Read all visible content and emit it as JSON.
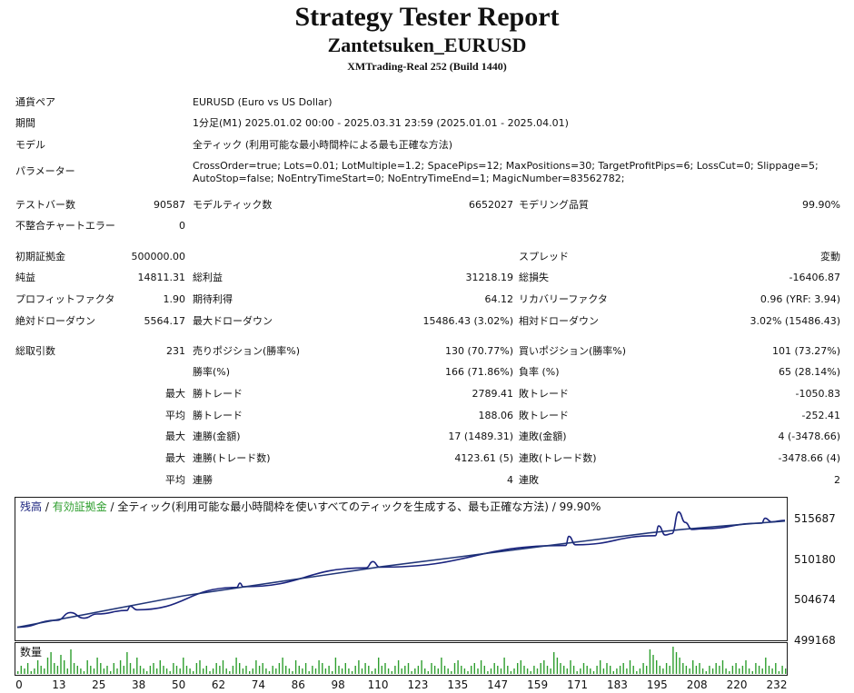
{
  "header": {
    "title": "Strategy Tester Report",
    "subtitle": "Zantetsuken_EURUSD",
    "build": "XMTrading-Real 252 (Build 1440)"
  },
  "info": {
    "symbol_label": "通貨ペア",
    "symbol_value": "EURUSD (Euro vs US Dollar)",
    "period_label": "期間",
    "period_value": "1分足(M1) 2025.01.02 00:00 - 2025.03.31 23:59 (2025.01.01 - 2025.04.01)",
    "model_label": "モデル",
    "model_value": "全ティック (利用可能な最小時間枠による最も正確な方法)",
    "params_label": "パラメーター",
    "params_line1": "CrossOrder=true; Lots=0.01; LotMultiple=1.2; SpacePips=12; MaxPositions=30; TargetProfitPips=6; LossCut=0; Slippage=5;",
    "params_line2": "AutoStop=false; NoEntryTimeStart=0; NoEntryTimeEnd=1; MagicNumber=83562782;"
  },
  "bars": {
    "bars_label": "テストバー数",
    "bars_value": "90587",
    "ticks_label": "モデルティック数",
    "ticks_value": "6652027",
    "quality_label": "モデリング品質",
    "quality_value": "99.90%",
    "errors_label": "不整合チャートエラー",
    "errors_value": "0"
  },
  "stats": {
    "deposit_label": "初期証拠金",
    "deposit_value": "500000.00",
    "spread_label": "スプレッド",
    "spread_value": "変動",
    "net_label": "純益",
    "net_value": "14811.31",
    "gross_profit_label": "総利益",
    "gross_profit_value": "31218.19",
    "gross_loss_label": "総損失",
    "gross_loss_value": "-16406.87",
    "pf_label": "プロフィットファクタ",
    "pf_value": "1.90",
    "payoff_label": "期待利得",
    "payoff_value": "64.12",
    "recovery_label": "リカバリーファクタ",
    "recovery_value": "0.96 (YRF: 3.94)",
    "abs_dd_label": "絶対ドローダウン",
    "abs_dd_value": "5564.17",
    "max_dd_label": "最大ドローダウン",
    "max_dd_value": "15486.43 (3.02%)",
    "rel_dd_label": "相対ドローダウン",
    "rel_dd_value": "3.02% (15486.43)"
  },
  "trades": {
    "total_label": "総取引数",
    "total_value": "231",
    "short_label": "売りポジション(勝率%)",
    "short_value": "130 (70.77%)",
    "long_label": "買いポジション(勝率%)",
    "long_value": "101 (73.27%)",
    "winrate_label": "勝率(%)",
    "winrate_value": "166 (71.86%)",
    "lossrate_label": "負率 (%)",
    "lossrate_value": "65 (28.14%)",
    "max_label": "最大",
    "avg_label": "平均",
    "largest_win_label": "勝トレード",
    "largest_win_value": "2789.41",
    "largest_loss_label": "敗トレード",
    "largest_loss_value": "-1050.83",
    "avg_win_label": "勝トレード",
    "avg_win_value": "188.06",
    "avg_loss_label": "敗トレード",
    "avg_loss_value": "-252.41",
    "consec_win_amt_label": "連勝(金額)",
    "consec_win_amt_value": "17 (1489.31)",
    "consec_loss_amt_label": "連敗(金額)",
    "consec_loss_amt_value": "4 (-3478.66)",
    "consec_win_cnt_label": "連勝(トレード数)",
    "consec_win_cnt_value": "4123.61 (5)",
    "consec_loss_cnt_label": "連敗(トレード数)",
    "consec_loss_cnt_value": "-3478.66 (4)",
    "avg_consec_win_label": "連勝",
    "avg_consec_win_value": "4",
    "avg_consec_loss_label": "連敗",
    "avg_consec_loss_value": "2"
  },
  "chart_data": {
    "type": "line",
    "legend_balance": "残高",
    "legend_sep1": " / ",
    "legend_equity": "有効証拠金",
    "legend_sep2": " / 全ティック(利用可能な最小時間枠を使いすべてのティックを生成する、最も正確な方法) / ",
    "legend_quality": "99.90%",
    "y_ticks": [
      "515687",
      "510180",
      "504674",
      "499168"
    ],
    "ylim": [
      499168,
      517500
    ],
    "x_ticks": [
      "0",
      "13",
      "25",
      "38",
      "50",
      "62",
      "74",
      "86",
      "98",
      "110",
      "123",
      "135",
      "147",
      "159",
      "171",
      "183",
      "195",
      "208",
      "220",
      "232"
    ],
    "volume_label": "数量",
    "colors": {
      "balance": "#1a237e",
      "equity": "#2e9e2e",
      "volume": "#2e9e2e",
      "legend_balance": "#1a237e",
      "legend_equity": "#2e9e2e"
    },
    "series": [
      {
        "name": "残高",
        "x": [
          0,
          10,
          20,
          30,
          40,
          50,
          60,
          70,
          80,
          90,
          100,
          110,
          120,
          130,
          140,
          150,
          160,
          170,
          180,
          190,
          200,
          210,
          220,
          231
        ],
        "values": [
          500000,
          500900,
          501800,
          502700,
          503600,
          504500,
          505200,
          505900,
          506600,
          507300,
          508000,
          508700,
          509300,
          509900,
          510500,
          511100,
          511700,
          512300,
          512900,
          513500,
          514000,
          514400,
          514800,
          515200
        ]
      },
      {
        "name": "有効証拠金",
        "x": [
          0,
          12,
          16,
          20,
          24,
          33,
          34,
          36,
          66,
          67,
          68,
          105,
          107,
          109,
          165,
          166,
          168,
          192,
          193,
          195,
          197,
          199,
          201,
          203,
          206,
          224,
          225,
          227,
          231
        ],
        "values": [
          500000,
          501000,
          502100,
          501300,
          501900,
          502400,
          503000,
          502500,
          505700,
          506300,
          505800,
          508500,
          509400,
          508600,
          511700,
          513000,
          511800,
          513100,
          514500,
          513200,
          513400,
          516500,
          515000,
          514000,
          514100,
          514900,
          515600,
          515100,
          515300
        ]
      }
    ],
    "volume": [
      1,
      3,
      2,
      4,
      1,
      2,
      5,
      3,
      2,
      6,
      8,
      4,
      3,
      7,
      5,
      2,
      9,
      4,
      3,
      2,
      1,
      5,
      3,
      2,
      6,
      4,
      2,
      3,
      1,
      4,
      2,
      5,
      3,
      8,
      4,
      2,
      6,
      3,
      2,
      1,
      3,
      4,
      2,
      5,
      3,
      2,
      1,
      4,
      3,
      2,
      6,
      3,
      2,
      1,
      4,
      5,
      2,
      3,
      1,
      2,
      4,
      3,
      5,
      2,
      1,
      3,
      6,
      4,
      2,
      3,
      1,
      2,
      5,
      3,
      4,
      2,
      1,
      3,
      2,
      4,
      6,
      3,
      2,
      1,
      5,
      3,
      2,
      4,
      1,
      3,
      2,
      5,
      4,
      2,
      3,
      1,
      6,
      3,
      2,
      4,
      2,
      1,
      3,
      5,
      2,
      4,
      3,
      1,
      2,
      6,
      3,
      4,
      2,
      1,
      3,
      5,
      2,
      3,
      4,
      1,
      2,
      3,
      5,
      2,
      1,
      4,
      3,
      2,
      6,
      3,
      2,
      1,
      4,
      5,
      3,
      2,
      1,
      3,
      4,
      2,
      5,
      3,
      1,
      2,
      4,
      3,
      2,
      6,
      3,
      1,
      2,
      4,
      5,
      3,
      2,
      1,
      3,
      2,
      4,
      5,
      3,
      2,
      8,
      6,
      4,
      3,
      2,
      5,
      3,
      1,
      2,
      4,
      3,
      2,
      1,
      3,
      5,
      2,
      4,
      3,
      1,
      2,
      3,
      4,
      2,
      5,
      3,
      1,
      2,
      4,
      3,
      9,
      7,
      5,
      3,
      2,
      4,
      3,
      10,
      8,
      6,
      4,
      3,
      2,
      5,
      3,
      4,
      2,
      1,
      3,
      2,
      4,
      3,
      5,
      2,
      1,
      3,
      4,
      2,
      3,
      5,
      2,
      1,
      4,
      3,
      2,
      6,
      3,
      2,
      4,
      1,
      3,
      2
    ]
  }
}
